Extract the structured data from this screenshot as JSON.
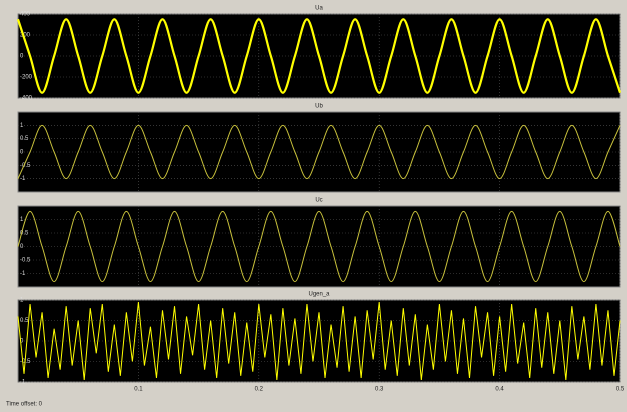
{
  "chart_data": [
    {
      "type": "line",
      "title": "Ua",
      "xlim": [
        0,
        0.5
      ],
      "ylim": [
        -400,
        400
      ],
      "yticks": [
        -400,
        -200,
        0,
        200,
        400
      ],
      "grid": true,
      "line_width": 2.2,
      "x": [
        0,
        0.01,
        0.02,
        0.03,
        0.04,
        0.05,
        0.06,
        0.07,
        0.08,
        0.09,
        0.1,
        0.11,
        0.12,
        0.13,
        0.14,
        0.15,
        0.16,
        0.17,
        0.18,
        0.19,
        0.2,
        0.21,
        0.22,
        0.23,
        0.24,
        0.25,
        0.26,
        0.27,
        0.28,
        0.29,
        0.3,
        0.31,
        0.32,
        0.33,
        0.34,
        0.35,
        0.36,
        0.37,
        0.38,
        0.39,
        0.4,
        0.41,
        0.42,
        0.43,
        0.44,
        0.45,
        0.46,
        0.47,
        0.48,
        0.49,
        0.5
      ],
      "series": [
        {
          "name": "Ua",
          "color": "#ffff00",
          "values": [
            350,
            0,
            -350,
            0,
            350,
            0,
            -350,
            0,
            350,
            0,
            -350,
            0,
            350,
            0,
            -350,
            0,
            350,
            0,
            -350,
            0,
            350,
            0,
            -350,
            0,
            350,
            0,
            -350,
            0,
            350,
            0,
            -350,
            0,
            350,
            0,
            -350,
            0,
            350,
            0,
            -350,
            0,
            350,
            0,
            -350,
            0,
            350,
            0,
            -350,
            0,
            350,
            0,
            -350
          ]
        }
      ]
    },
    {
      "type": "line",
      "title": "Ub",
      "xlim": [
        0,
        0.5
      ],
      "ylim": [
        -1.5,
        1.5
      ],
      "yticks": [
        -1,
        -0.5,
        0,
        0.5,
        1
      ],
      "grid": true,
      "line_width": 1,
      "x": [
        0,
        0.01,
        0.02,
        0.03,
        0.04,
        0.05,
        0.06,
        0.07,
        0.08,
        0.09,
        0.1,
        0.11,
        0.12,
        0.13,
        0.14,
        0.15,
        0.16,
        0.17,
        0.18,
        0.19,
        0.2,
        0.21,
        0.22,
        0.23,
        0.24,
        0.25,
        0.26,
        0.27,
        0.28,
        0.29,
        0.3,
        0.31,
        0.32,
        0.33,
        0.34,
        0.35,
        0.36,
        0.37,
        0.38,
        0.39,
        0.4,
        0.41,
        0.42,
        0.43,
        0.44,
        0.45,
        0.46,
        0.47,
        0.48,
        0.49,
        0.5
      ],
      "series": [
        {
          "name": "Ub",
          "color": "#c9c23c",
          "values": [
            -1,
            0,
            1,
            0,
            -1,
            0,
            1,
            0,
            -1,
            0,
            1,
            0,
            -1,
            0,
            1,
            0,
            -1,
            0,
            1,
            0,
            -1,
            0,
            1,
            0,
            -1,
            0,
            1,
            0,
            -1,
            0,
            1,
            0,
            -1,
            0,
            1,
            0,
            -1,
            0,
            1,
            0,
            -1,
            0,
            1,
            0,
            -1,
            0,
            1,
            0,
            -1,
            0,
            1
          ]
        }
      ]
    },
    {
      "type": "line",
      "title": "Uc",
      "xlim": [
        0,
        0.5
      ],
      "ylim": [
        -1.5,
        1.5
      ],
      "yticks": [
        -1,
        -0.5,
        0,
        0.5,
        1
      ],
      "grid": true,
      "line_width": 1,
      "x": [
        0,
        0.01,
        0.02,
        0.03,
        0.04,
        0.05,
        0.06,
        0.07,
        0.08,
        0.09,
        0.1,
        0.11,
        0.12,
        0.13,
        0.14,
        0.15,
        0.16,
        0.17,
        0.18,
        0.19,
        0.2,
        0.21,
        0.22,
        0.23,
        0.24,
        0.25,
        0.26,
        0.27,
        0.28,
        0.29,
        0.3,
        0.31,
        0.32,
        0.33,
        0.34,
        0.35,
        0.36,
        0.37,
        0.38,
        0.39,
        0.4,
        0.41,
        0.42,
        0.43,
        0.44,
        0.45,
        0.46,
        0.47,
        0.48,
        0.49,
        0.5
      ],
      "series": [
        {
          "name": "Uc",
          "color": "#c9c23c",
          "values": [
            0,
            1.3,
            0,
            -1.3,
            0,
            1.3,
            0,
            -1.3,
            0,
            1.3,
            0,
            -1.3,
            0,
            1.3,
            0,
            -1.3,
            0,
            1.3,
            0,
            -1.3,
            0,
            1.3,
            0,
            -1.3,
            0,
            1.3,
            0,
            -1.3,
            0,
            1.3,
            0,
            -1.3,
            0,
            1.3,
            0,
            -1.3,
            0,
            1.3,
            0,
            -1.3,
            0,
            1.3,
            0,
            -1.3,
            0,
            1.3,
            0,
            -1.3,
            0,
            1.3,
            0
          ]
        }
      ]
    },
    {
      "type": "line",
      "title": "Ugen_a",
      "xlim": [
        0,
        0.5
      ],
      "ylim": [
        -1,
        1
      ],
      "yticks": [
        -1,
        -0.5,
        0,
        0.5,
        1
      ],
      "xticks": [
        0.1,
        0.2,
        0.3,
        0.4,
        0.5
      ],
      "grid": true,
      "line_width": 1,
      "straight": true,
      "x": [
        0,
        0.005,
        0.01,
        0.015,
        0.02,
        0.025,
        0.03,
        0.035,
        0.04,
        0.045,
        0.05,
        0.055,
        0.06,
        0.065,
        0.07,
        0.075,
        0.08,
        0.085,
        0.09,
        0.095,
        0.1,
        0.105,
        0.11,
        0.115,
        0.12,
        0.125,
        0.13,
        0.135,
        0.14,
        0.145,
        0.15,
        0.155,
        0.16,
        0.165,
        0.17,
        0.175,
        0.18,
        0.185,
        0.19,
        0.195,
        0.2,
        0.205,
        0.21,
        0.215,
        0.22,
        0.225,
        0.23,
        0.235,
        0.24,
        0.245,
        0.25,
        0.255,
        0.26,
        0.265,
        0.27,
        0.275,
        0.28,
        0.285,
        0.29,
        0.295,
        0.3,
        0.305,
        0.31,
        0.315,
        0.32,
        0.325,
        0.33,
        0.335,
        0.34,
        0.345,
        0.35,
        0.355,
        0.36,
        0.365,
        0.37,
        0.375,
        0.38,
        0.385,
        0.39,
        0.395,
        0.4,
        0.405,
        0.41,
        0.415,
        0.42,
        0.425,
        0.43,
        0.435,
        0.44,
        0.445,
        0.45,
        0.455,
        0.46,
        0.465,
        0.47,
        0.475,
        0.48,
        0.485,
        0.49,
        0.495,
        0.5
      ],
      "series": [
        {
          "name": "Ugen_a",
          "color": "#ffff00",
          "values": [
            0.6,
            -0.8,
            0.9,
            -0.4,
            0.7,
            -0.9,
            0.3,
            -0.7,
            0.85,
            -0.6,
            0.5,
            -0.95,
            0.8,
            -0.3,
            0.9,
            -0.75,
            0.4,
            -0.85,
            0.7,
            -0.5,
            0.95,
            -0.6,
            0.35,
            -0.9,
            0.75,
            -0.45,
            0.85,
            -0.8,
            0.6,
            -0.35,
            0.9,
            -0.7,
            0.5,
            -0.9,
            0.8,
            -0.55,
            0.7,
            -0.85,
            0.45,
            -0.75,
            0.9,
            -0.4,
            0.65,
            -0.95,
            0.8,
            -0.6,
            0.55,
            -0.8,
            0.9,
            -0.5,
            0.7,
            -0.9,
            0.4,
            -0.65,
            0.85,
            -0.75,
            0.6,
            -0.9,
            0.75,
            -0.45,
            0.95,
            -0.7,
            0.5,
            -0.85,
            0.8,
            -0.6,
            0.65,
            -0.95,
            0.4,
            -0.7,
            0.9,
            -0.5,
            0.75,
            -0.8,
            0.55,
            -0.9,
            0.85,
            -0.4,
            0.7,
            -0.85,
            0.6,
            -0.75,
            0.9,
            -0.55,
            0.45,
            -0.9,
            0.8,
            -0.65,
            0.7,
            -0.8,
            0.5,
            -0.95,
            0.85,
            -0.45,
            0.6,
            -0.7,
            0.9,
            -0.6,
            0.75,
            -0.85,
            0.5
          ]
        }
      ]
    }
  ],
  "status": "Time offset: 0"
}
